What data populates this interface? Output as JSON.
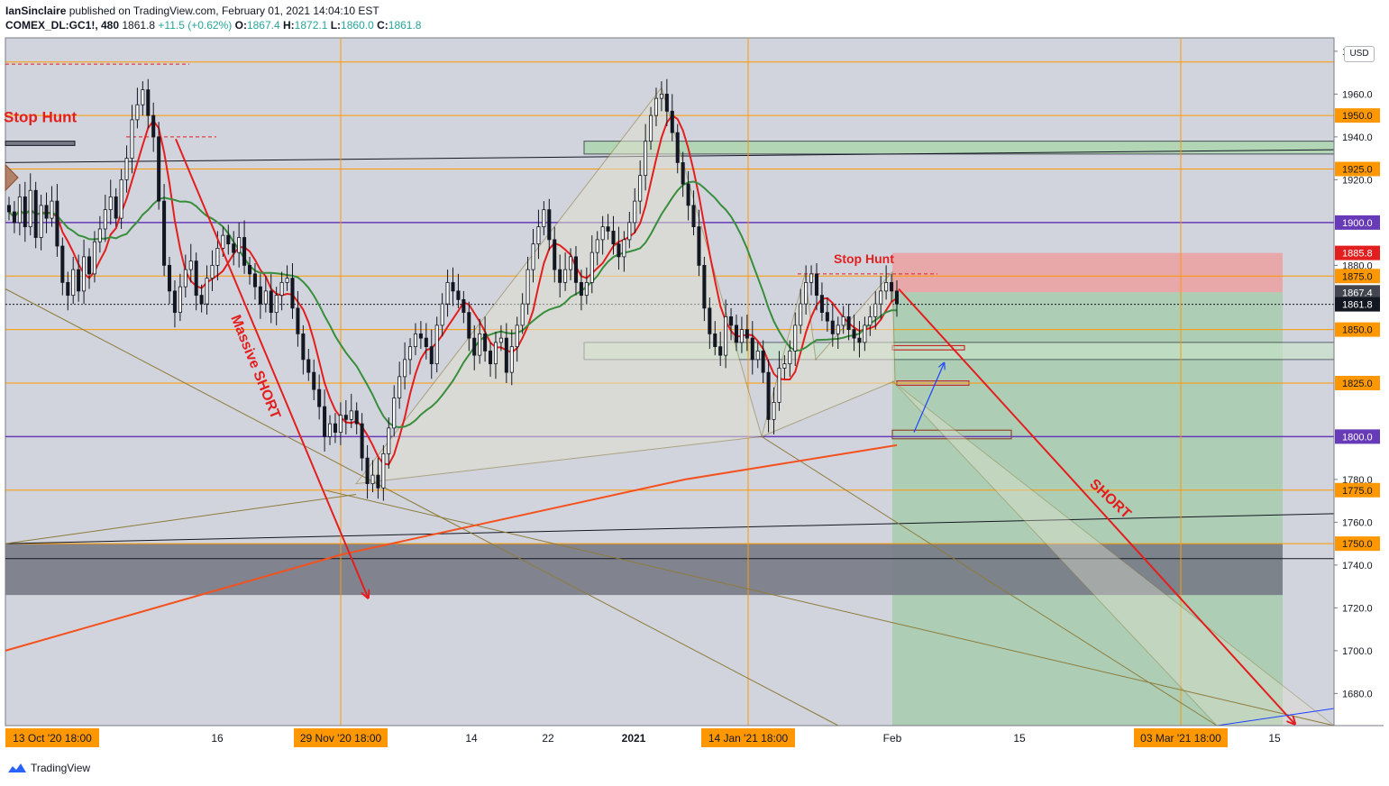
{
  "header": {
    "author": "IanSinclaire",
    "published_text": "published on TradingView.com, February 01, 2021 14:04:10 EST",
    "symbol": "COMEX_DL:GC1!, 480",
    "last": "1861.8",
    "change": "+11.5 (+0.62%)",
    "o_label": "O:",
    "o_val": "1867.4",
    "h_label": "H:",
    "h_val": "1872.1",
    "l_label": "L:",
    "l_val": "1860.0",
    "c_label": "C:",
    "c_val": "1861.8"
  },
  "footer": {
    "brand": "TradingView"
  },
  "currency_badge": "USD",
  "colors": {
    "background": "#d1d4dc",
    "orange_line": "#ff9800",
    "purple_line": "#673ab7",
    "red": "#e31e1e",
    "green_zone": "#81c784",
    "red_zone": "#ef9a9a",
    "gray_zone": "#787b86",
    "green_ma": "#388e3c",
    "orange_ma": "#f4511e",
    "pattern": "#8d7b3a"
  },
  "chart_data": {
    "type": "candlestick",
    "y_axis": {
      "min": 1665,
      "max": 1985,
      "ticks": [
        "1980.0",
        "1960.0",
        "1940.0",
        "1920.0",
        "1880.0",
        "1780.0",
        "1760.0",
        "1740.0",
        "1720.0",
        "1700.0",
        "1680.0"
      ]
    },
    "x_axis": {
      "labels": [
        {
          "text": "13 Oct '20   18:00",
          "highlight": true
        },
        {
          "text": "16",
          "highlight": false
        },
        {
          "text": "29 Nov '20   18:00",
          "highlight": true
        },
        {
          "text": "14",
          "highlight": false
        },
        {
          "text": "22",
          "highlight": false
        },
        {
          "text": "2021",
          "highlight": false,
          "bold": true
        },
        {
          "text": "14 Jan '21   18:00",
          "highlight": true
        },
        {
          "text": "Feb",
          "highlight": false
        },
        {
          "text": "15",
          "highlight": false
        },
        {
          "text": "03 Mar '21   18:00",
          "highlight": true
        },
        {
          "text": "15",
          "highlight": false
        }
      ]
    },
    "horizontal_levels": [
      {
        "value": 1975.0,
        "label": "",
        "color": "orange"
      },
      {
        "value": 1950.0,
        "label": "1950.0",
        "color": "orange"
      },
      {
        "value": 1925.0,
        "label": "1925.0",
        "color": "orange"
      },
      {
        "value": 1900.0,
        "label": "1900.0",
        "color": "purple"
      },
      {
        "value": 1875.0,
        "label": "1875.0",
        "color": "orange"
      },
      {
        "value": 1850.0,
        "label": "1850.0",
        "color": "orange"
      },
      {
        "value": 1825.0,
        "label": "1825.0",
        "color": "orange"
      },
      {
        "value": 1800.0,
        "label": "1800.0",
        "color": "purple"
      },
      {
        "value": 1775.0,
        "label": "1775.0",
        "color": "orange"
      },
      {
        "value": 1750.0,
        "label": "1750.0",
        "color": "orange"
      }
    ],
    "price_tags": [
      {
        "value": 1885.8,
        "label": "1885.8",
        "bg": "#e31e1e"
      },
      {
        "value": 1867.4,
        "label": "1867.4",
        "bg": "#434651"
      },
      {
        "value": 1861.8,
        "label": "1861.8",
        "bg": "#131722"
      }
    ],
    "annotations": [
      {
        "text": "Stop Hunt",
        "color": "#e31e1e"
      },
      {
        "text": "Stop Hunt",
        "color": "#e31e1e"
      },
      {
        "text": "Massive SHORT",
        "color": "#e31e1e"
      },
      {
        "text": "SHORT",
        "color": "#e31e1e"
      }
    ],
    "candles_close": [
      1905,
      1900,
      1912,
      1898,
      1915,
      1893,
      1908,
      1902,
      1910,
      1889,
      1872,
      1866,
      1878,
      1868,
      1884,
      1876,
      1891,
      1897,
      1906,
      1912,
      1902,
      1920,
      1930,
      1948,
      1955,
      1962,
      1950,
      1940,
      1910,
      1880,
      1868,
      1858,
      1870,
      1878,
      1882,
      1866,
      1862,
      1874,
      1880,
      1888,
      1894,
      1890,
      1886,
      1893,
      1880,
      1876,
      1870,
      1862,
      1868,
      1858,
      1866,
      1872,
      1874,
      1860,
      1848,
      1836,
      1830,
      1822,
      1814,
      1800,
      1806,
      1802,
      1810,
      1808,
      1812,
      1806,
      1790,
      1778,
      1782,
      1776,
      1792,
      1804,
      1818,
      1828,
      1836,
      1842,
      1848,
      1846,
      1842,
      1834,
      1852,
      1862,
      1872,
      1868,
      1864,
      1858,
      1846,
      1838,
      1848,
      1840,
      1834,
      1844,
      1846,
      1830,
      1842,
      1852,
      1862,
      1878,
      1890,
      1898,
      1906,
      1892,
      1878,
      1872,
      1878,
      1884,
      1872,
      1866,
      1872,
      1886,
      1892,
      1898,
      1896,
      1890,
      1884,
      1892,
      1900,
      1910,
      1922,
      1938,
      1950,
      1958,
      1960,
      1952,
      1942,
      1928,
      1918,
      1908,
      1898,
      1880,
      1860,
      1848,
      1842,
      1838,
      1856,
      1852,
      1844,
      1850,
      1846,
      1836,
      1840,
      1830,
      1808,
      1816,
      1832,
      1834,
      1840,
      1852,
      1862,
      1872,
      1876,
      1866,
      1858,
      1854,
      1848,
      1852,
      1856,
      1850,
      1846,
      1844,
      1852,
      1856,
      1862,
      1868,
      1872,
      1868,
      1862
    ]
  }
}
